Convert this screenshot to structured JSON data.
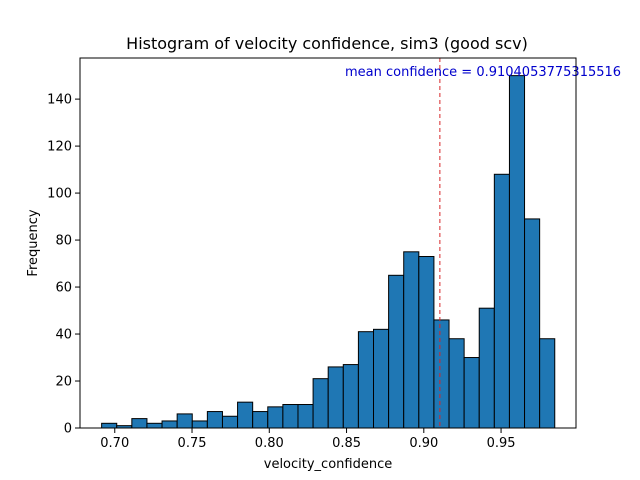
{
  "chart_data": {
    "type": "bar",
    "title": "Histogram of velocity confidence, sim3 (good scv)",
    "xlabel": "velocity_confidence",
    "ylabel": "Frequency",
    "xlim": [
      0.6775,
      0.9985
    ],
    "ylim": [
      0,
      157.5
    ],
    "x_ticks": [
      0.7,
      0.75,
      0.8,
      0.85,
      0.9,
      0.95
    ],
    "x_tick_labels": [
      "0.70",
      "0.75",
      "0.80",
      "0.85",
      "0.90",
      "0.95"
    ],
    "y_ticks": [
      0,
      20,
      40,
      60,
      80,
      100,
      120,
      140
    ],
    "y_tick_labels": [
      "0",
      "20",
      "40",
      "60",
      "80",
      "100",
      "120",
      "140"
    ],
    "bin_start": 0.6915,
    "bin_width": 0.009775,
    "values": [
      2,
      1,
      4,
      2,
      3,
      6,
      3,
      7,
      5,
      11,
      7,
      9,
      10,
      10,
      21,
      26,
      27,
      41,
      42,
      65,
      75,
      73,
      46,
      38,
      30,
      51,
      108,
      150,
      89,
      38
    ],
    "bar_color": "#1f77b4",
    "edge_color": "#000000",
    "mean_line": {
      "value": 0.9104053775315516,
      "color": "#d62728",
      "style": "dashed",
      "label": "mean confidence = 0.9104053775315516",
      "label_color": "#0000cc"
    },
    "grid": false,
    "legend": "none"
  }
}
